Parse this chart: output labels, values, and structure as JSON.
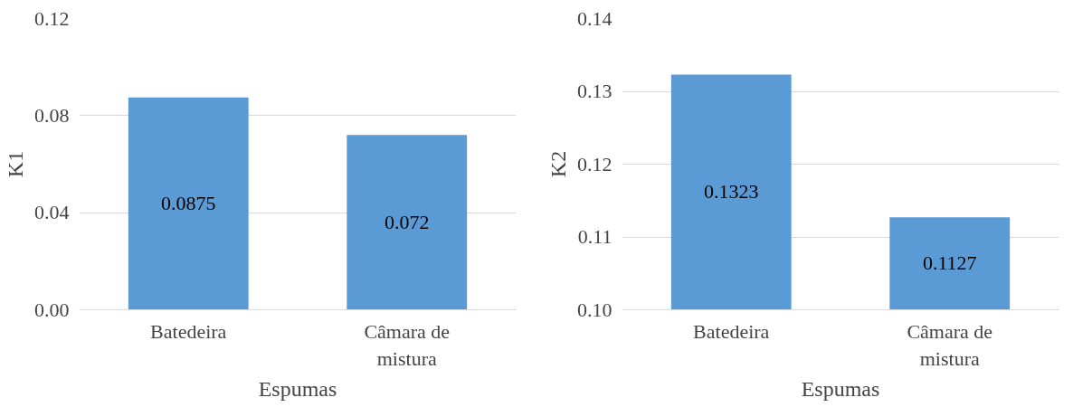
{
  "chart_data": [
    {
      "type": "bar",
      "xlabel": "Espumas",
      "ylabel": "K1",
      "categories": [
        "Batedeira",
        "Câmara de mistura"
      ],
      "values": [
        0.0875,
        0.072
      ],
      "color": "#5b9bd5",
      "ylim": [
        0,
        0.12
      ],
      "yticks": [
        {
          "value": 0,
          "label": "0.00"
        },
        {
          "value": 0.04,
          "label": "0.04"
        },
        {
          "value": 0.08,
          "label": "0.08"
        },
        {
          "value": 0.12,
          "label": "0.12"
        }
      ],
      "grid": "y",
      "data_labels": true
    },
    {
      "type": "bar",
      "xlabel": "Espumas",
      "ylabel": "K2",
      "categories": [
        "Batedeira",
        "Câmara de mistura"
      ],
      "values": [
        0.1323,
        0.1127
      ],
      "color": "#5b9bd5",
      "ylim": [
        0.1,
        0.14
      ],
      "yticks": [
        {
          "value": 0.1,
          "label": "0.10"
        },
        {
          "value": 0.11,
          "label": "0.11"
        },
        {
          "value": 0.12,
          "label": "0.12"
        },
        {
          "value": 0.13,
          "label": "0.13"
        },
        {
          "value": 0.14,
          "label": "0.14"
        }
      ],
      "grid": "y",
      "data_labels": true
    }
  ]
}
